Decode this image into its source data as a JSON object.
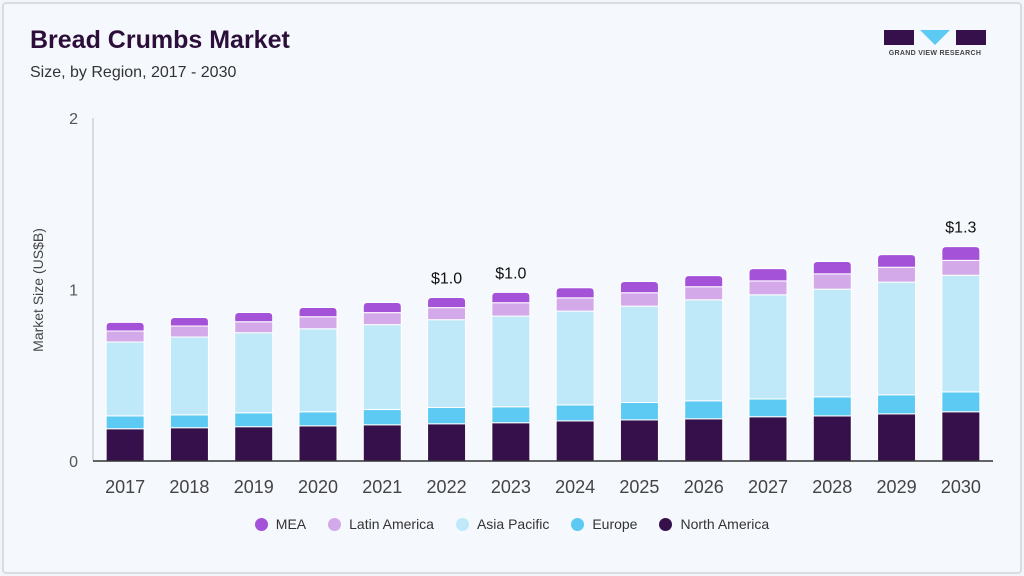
{
  "header": {
    "title": "Bread Crumbs Market",
    "subtitle": "Size, by Region, 2017 - 2030"
  },
  "logo": {
    "text": "GRAND VIEW RESEARCH"
  },
  "chart_data": {
    "type": "bar",
    "stacked": true,
    "title": "Bread Crumbs Market",
    "subtitle": "Size, by Region, 2017 - 2030",
    "xlabel": "",
    "ylabel": "Market Size (US$B)",
    "ylim": [
      0,
      2
    ],
    "yticks": [
      "0",
      "1",
      "2"
    ],
    "grid": false,
    "legend_placement": "bottom",
    "categories": [
      "2017",
      "2018",
      "2019",
      "2020",
      "2021",
      "2022",
      "2023",
      "2024",
      "2025",
      "2026",
      "2027",
      "2028",
      "2029",
      "2030"
    ],
    "series": [
      {
        "name": "North America",
        "color": "#36104a",
        "values": [
          0.188,
          0.194,
          0.2,
          0.205,
          0.211,
          0.217,
          0.223,
          0.234,
          0.24,
          0.246,
          0.258,
          0.263,
          0.275,
          0.287
        ]
      },
      {
        "name": "Europe",
        "color": "#5ccaf2",
        "values": [
          0.075,
          0.075,
          0.081,
          0.082,
          0.089,
          0.095,
          0.093,
          0.093,
          0.101,
          0.105,
          0.104,
          0.111,
          0.111,
          0.116
        ]
      },
      {
        "name": "Asia Pacific",
        "color": "#bfe9f9",
        "values": [
          0.431,
          0.454,
          0.467,
          0.484,
          0.495,
          0.512,
          0.529,
          0.547,
          0.562,
          0.589,
          0.607,
          0.628,
          0.657,
          0.68
        ]
      },
      {
        "name": "Latin America",
        "color": "#d4a9e9",
        "values": [
          0.064,
          0.064,
          0.064,
          0.07,
          0.07,
          0.07,
          0.078,
          0.077,
          0.078,
          0.076,
          0.081,
          0.089,
          0.087,
          0.087
        ]
      },
      {
        "name": "MEA",
        "color": "#a452d8",
        "values": [
          0.05,
          0.05,
          0.054,
          0.054,
          0.059,
          0.059,
          0.06,
          0.059,
          0.066,
          0.065,
          0.072,
          0.072,
          0.073,
          0.08
        ]
      }
    ],
    "annotations": [
      {
        "category": "2022",
        "text": "$1.0"
      },
      {
        "category": "2023",
        "text": "$1.0"
      },
      {
        "category": "2030",
        "text": "$1.3"
      }
    ],
    "legend_order": [
      "MEA",
      "Latin America",
      "Asia Pacific",
      "Europe",
      "North America"
    ]
  }
}
